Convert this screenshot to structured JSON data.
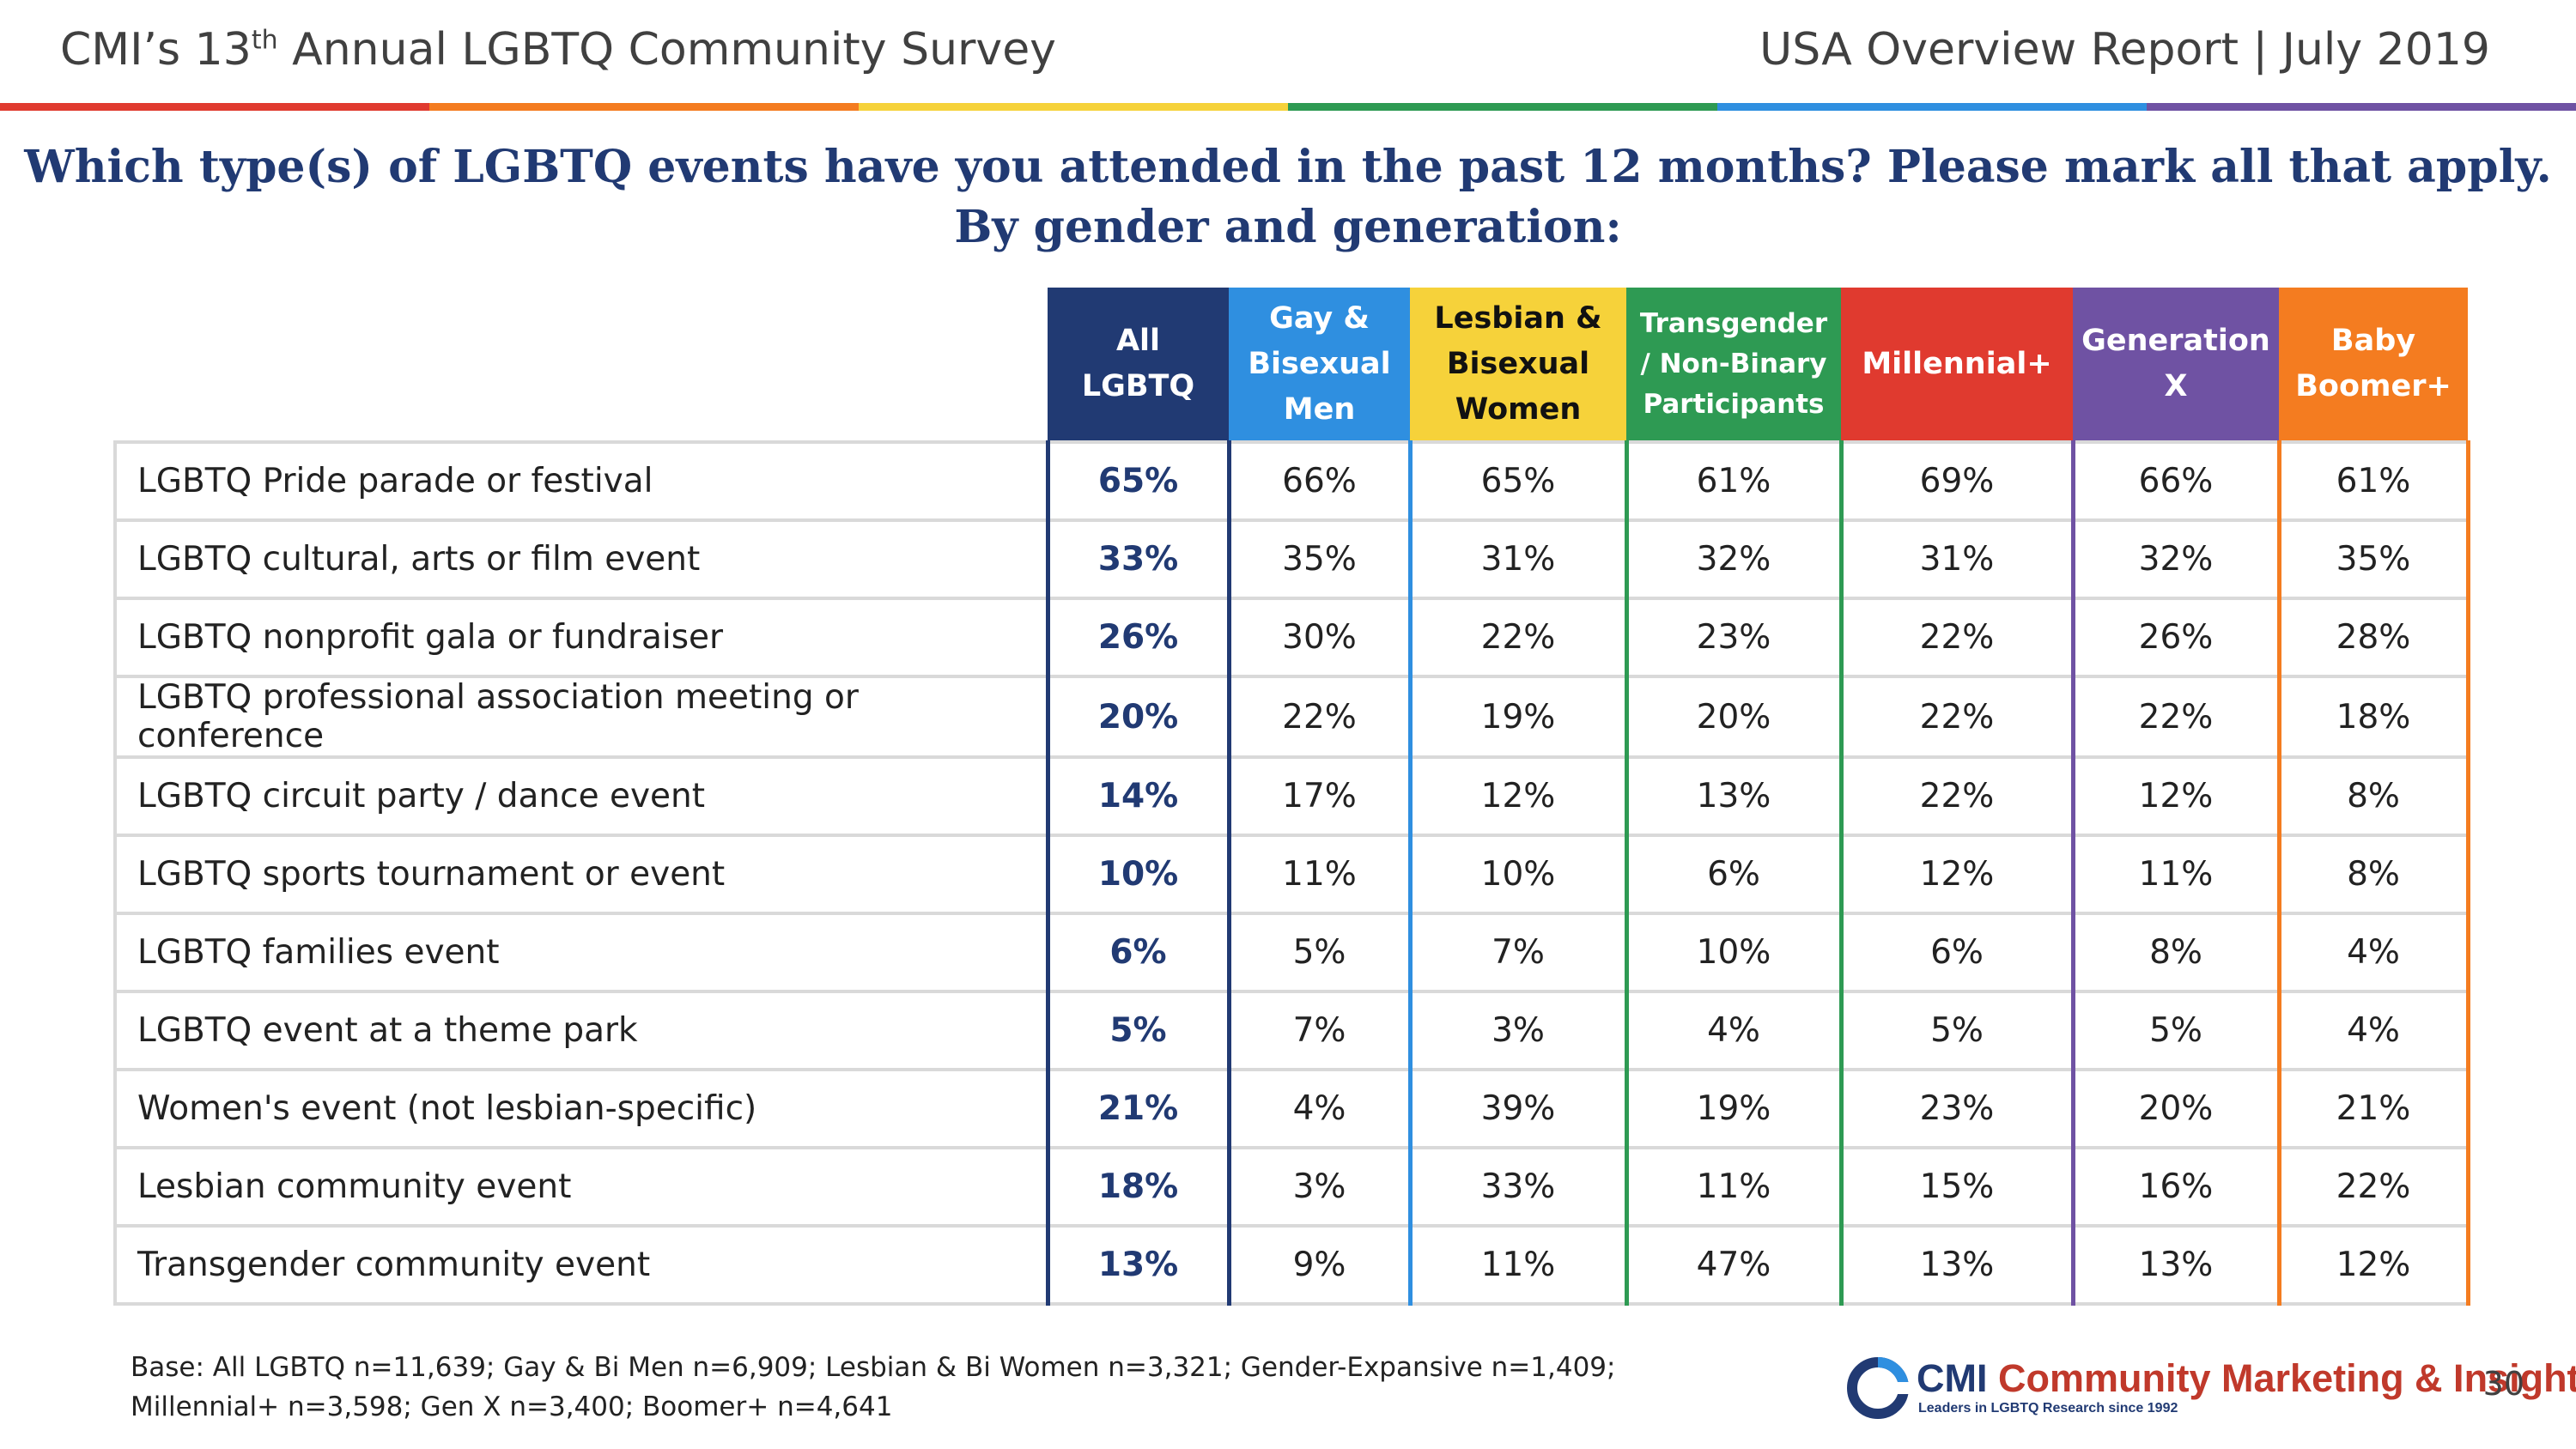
{
  "header": {
    "left_title_pre": "CMI’s 13",
    "left_title_sup": "th",
    "left_title_post": " Annual LGBTQ Community Survey",
    "right_title": "USA Overview Report | July 2019"
  },
  "rainbow_colors": [
    "#e03a2f",
    "#f47c20",
    "#f6d23a",
    "#2e9a53",
    "#2f8fe0",
    "#6f52a3"
  ],
  "title": {
    "line1": "Which type(s) of LGBTQ events have you attended in the past 12 months? Please mark all that apply.",
    "line2": "By gender and generation:"
  },
  "table": {
    "columns": [
      {
        "label": "All\nLGBTQ",
        "color": "#213a73",
        "text_color": "#ffffff"
      },
      {
        "label": "Gay &\nBisexual\nMen",
        "color": "#2f8fe0",
        "text_color": "#ffffff"
      },
      {
        "label": "Lesbian &\nBisexual\nWomen",
        "color": "#f6d23a",
        "text_color": "#111111"
      },
      {
        "label": "Transgender\n/ Non-Binary\nParticipants",
        "color": "#2e9a53",
        "text_color": "#ffffff"
      },
      {
        "label": "Millennial+",
        "color": "#e03a2f",
        "text_color": "#ffffff"
      },
      {
        "label": "Generation\nX",
        "color": "#6f52a3",
        "text_color": "#ffffff"
      },
      {
        "label": "Baby\nBoomer+",
        "color": "#f47c20",
        "text_color": "#ffffff"
      }
    ],
    "rows": [
      {
        "label": "LGBTQ Pride parade or festival",
        "values": [
          "65%",
          "66%",
          "65%",
          "61%",
          "69%",
          "66%",
          "61%"
        ]
      },
      {
        "label": "LGBTQ cultural, arts or film event",
        "values": [
          "33%",
          "35%",
          "31%",
          "32%",
          "31%",
          "32%",
          "35%"
        ]
      },
      {
        "label": "LGBTQ nonprofit gala or fundraiser",
        "values": [
          "26%",
          "30%",
          "22%",
          "23%",
          "22%",
          "26%",
          "28%"
        ]
      },
      {
        "label": "LGBTQ professional association meeting or conference",
        "values": [
          "20%",
          "22%",
          "19%",
          "20%",
          "22%",
          "22%",
          "18%"
        ]
      },
      {
        "label": "LGBTQ circuit party / dance event",
        "values": [
          "14%",
          "17%",
          "12%",
          "13%",
          "22%",
          "12%",
          "8%"
        ]
      },
      {
        "label": "LGBTQ sports tournament or event",
        "values": [
          "10%",
          "11%",
          "10%",
          "6%",
          "12%",
          "11%",
          "8%"
        ]
      },
      {
        "label": "LGBTQ families event",
        "values": [
          "6%",
          "5%",
          "7%",
          "10%",
          "6%",
          "8%",
          "4%"
        ]
      },
      {
        "label": "LGBTQ event at a theme park",
        "values": [
          "5%",
          "7%",
          "3%",
          "4%",
          "5%",
          "5%",
          "4%"
        ]
      },
      {
        "label": "Women's event (not lesbian-specific)",
        "values": [
          "21%",
          "4%",
          "39%",
          "19%",
          "23%",
          "20%",
          "21%"
        ]
      },
      {
        "label": "Lesbian community event",
        "values": [
          "18%",
          "3%",
          "33%",
          "11%",
          "15%",
          "16%",
          "22%"
        ]
      },
      {
        "label": "Transgender community event",
        "values": [
          "13%",
          "9%",
          "11%",
          "47%",
          "13%",
          "13%",
          "12%"
        ]
      }
    ]
  },
  "footnote": {
    "line1": "Base: All LGBTQ n=11,639; Gay & Bi Men n=6,909; Lesbian & Bi Women n=3,321; Gender-Expansive n=1,409;",
    "line2": "Millennial+ n=3,598; Gen X n=3,400; Boomer+ n=4,641"
  },
  "logo": {
    "mark": "CMI",
    "name": "Community Marketing & Insights",
    "tagline": "Leaders in LGBTQ Research since 1992",
    "icon": "cmi-logo-icon"
  },
  "page_number": "30"
}
